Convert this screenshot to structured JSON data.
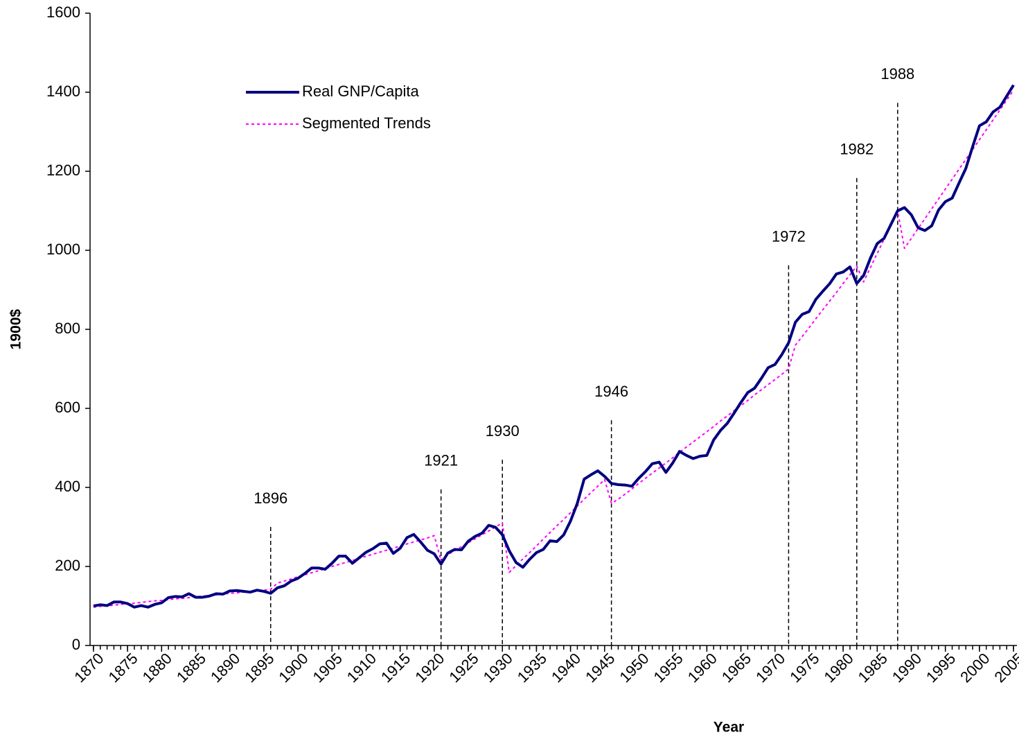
{
  "chart_data": {
    "type": "line",
    "xlabel": "Year",
    "ylabel": "1900$",
    "x": [
      1870,
      1871,
      1872,
      1873,
      1874,
      1875,
      1876,
      1877,
      1878,
      1879,
      1880,
      1881,
      1882,
      1883,
      1884,
      1885,
      1886,
      1887,
      1888,
      1889,
      1890,
      1891,
      1892,
      1893,
      1894,
      1895,
      1896,
      1897,
      1898,
      1899,
      1900,
      1901,
      1902,
      1903,
      1904,
      1905,
      1906,
      1907,
      1908,
      1909,
      1910,
      1911,
      1912,
      1913,
      1914,
      1915,
      1916,
      1917,
      1918,
      1919,
      1920,
      1921,
      1922,
      1923,
      1924,
      1925,
      1926,
      1927,
      1928,
      1929,
      1930,
      1931,
      1932,
      1933,
      1934,
      1935,
      1936,
      1937,
      1938,
      1939,
      1940,
      1941,
      1942,
      1943,
      1944,
      1945,
      1946,
      1947,
      1948,
      1949,
      1950,
      1951,
      1952,
      1953,
      1954,
      1955,
      1956,
      1957,
      1958,
      1959,
      1960,
      1961,
      1962,
      1963,
      1964,
      1965,
      1966,
      1967,
      1968,
      1969,
      1970,
      1971,
      1972,
      1973,
      1974,
      1975,
      1976,
      1977,
      1978,
      1979,
      1980,
      1981,
      1982,
      1983,
      1984,
      1985,
      1986,
      1987,
      1988,
      1989,
      1990,
      1991,
      1992,
      1993,
      1994,
      1995,
      1996,
      1997,
      1998,
      1999,
      2000,
      2001,
      2002,
      2003,
      2004,
      2005
    ],
    "series": [
      {
        "name": "Real GNP/Capita",
        "color": "#000080",
        "style": "solid",
        "values": [
          100,
          103,
          101,
          110,
          110,
          106,
          97,
          101,
          97,
          104,
          108,
          121,
          124,
          123,
          131,
          122,
          122,
          125,
          131,
          130,
          138,
          139,
          137,
          135,
          140,
          137,
          132,
          146,
          151,
          163,
          170,
          182,
          196,
          196,
          193,
          208,
          226,
          226,
          208,
          222,
          236,
          245,
          257,
          259,
          233,
          246,
          273,
          281,
          262,
          241,
          232,
          206,
          234,
          243,
          242,
          264,
          276,
          284,
          304,
          299,
          280,
          240,
          210,
          198,
          218,
          235,
          243,
          265,
          263,
          280,
          315,
          360,
          421,
          432,
          442,
          428,
          410,
          407,
          406,
          403,
          423,
          440,
          460,
          464,
          438,
          462,
          491,
          481,
          473,
          479,
          481,
          520,
          544,
          562,
          588,
          615,
          640,
          651,
          676,
          703,
          711,
          736,
          766,
          818,
          838,
          845,
          876,
          896,
          915,
          940,
          945,
          958,
          916,
          936,
          980,
          1017,
          1030,
          1065,
          1100,
          1108,
          1090,
          1057,
          1050,
          1062,
          1102,
          1123,
          1132,
          1170,
          1207,
          1262,
          1315,
          1325,
          1350,
          1362,
          1390,
          1418
        ]
      },
      {
        "name": "Segmented Trends",
        "color": "#ff00ff",
        "style": "dashed",
        "values": [
          97,
          99,
          100,
          102,
          104,
          106,
          107,
          109,
          111,
          113,
          114,
          116,
          118,
          119,
          121,
          123,
          125,
          126,
          128,
          130,
          132,
          133,
          135,
          137,
          138,
          140,
          142,
          158,
          163,
          168,
          174,
          179,
          184,
          189,
          194,
          200,
          205,
          210,
          215,
          220,
          226,
          231,
          236,
          241,
          246,
          252,
          257,
          262,
          267,
          272,
          278,
          215,
          230,
          240,
          250,
          260,
          270,
          280,
          290,
          300,
          310,
          185,
          202,
          219,
          235,
          252,
          269,
          286,
          303,
          319,
          336,
          353,
          370,
          387,
          403,
          420,
          360,
          370,
          383,
          396,
          410,
          423,
          436,
          449,
          462,
          475,
          489,
          502,
          515,
          528,
          541,
          554,
          568,
          581,
          594,
          607,
          620,
          634,
          647,
          660,
          673,
          686,
          700,
          760,
          782,
          804,
          827,
          849,
          871,
          893,
          916,
          938,
          960,
          920,
          956,
          992,
          1028,
          1064,
          1100,
          1005,
          1030,
          1055,
          1080,
          1105,
          1130,
          1155,
          1180,
          1205,
          1230,
          1255,
          1280,
          1305,
          1330,
          1355,
          1380,
          1405
        ]
      }
    ],
    "annotations": [
      {
        "x": 1896,
        "y": 300
      },
      {
        "x": 1921,
        "y": 395
      },
      {
        "x": 1930,
        "y": 470
      },
      {
        "x": 1946,
        "y": 570
      },
      {
        "x": 1972,
        "y": 962
      },
      {
        "x": 1982,
        "y": 1183
      },
      {
        "x": 1988,
        "y": 1373
      }
    ],
    "xlim": [
      1869.5,
      2005.5
    ],
    "xticks": [
      1870,
      1875,
      1880,
      1885,
      1890,
      1895,
      1900,
      1905,
      1910,
      1915,
      1920,
      1925,
      1930,
      1935,
      1940,
      1945,
      1950,
      1955,
      1960,
      1965,
      1970,
      1975,
      1980,
      1985,
      1990,
      1995,
      2000,
      2005
    ],
    "ylim": [
      0,
      1600
    ],
    "yticks": [
      0,
      200,
      400,
      600,
      800,
      1000,
      1200,
      1400,
      1600
    ],
    "grid": false
  }
}
